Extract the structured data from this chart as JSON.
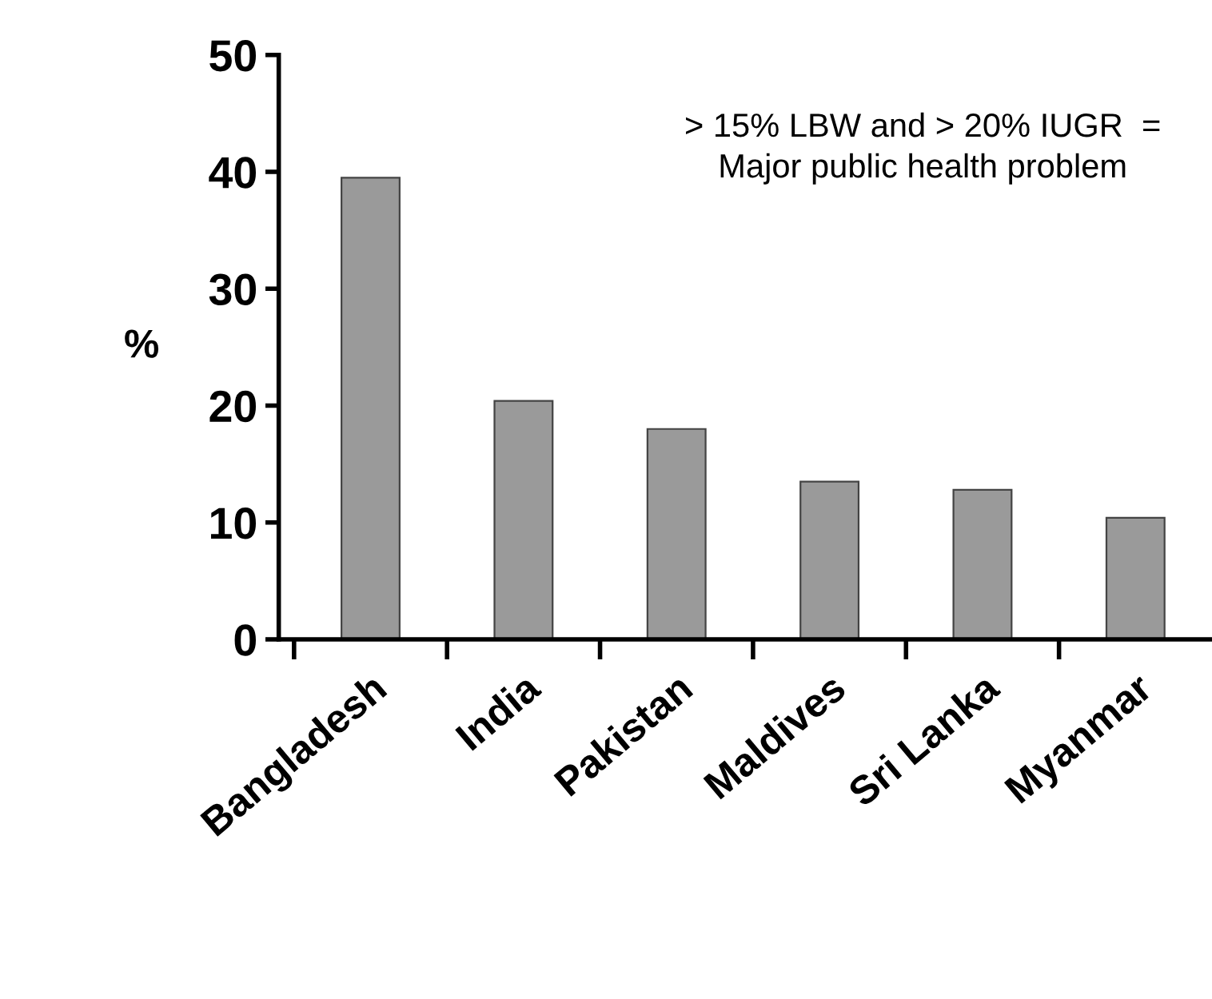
{
  "chart_data": {
    "type": "bar",
    "categories": [
      "Bangladesh",
      "India",
      "Pakistan",
      "Maldives",
      "Sri Lanka",
      "Myanmar"
    ],
    "values": [
      39.5,
      20.4,
      18.0,
      13.5,
      12.8,
      10.4
    ],
    "color": "#9a9a9a",
    "ylabel": "%",
    "ylim": [
      0,
      50
    ],
    "yticks": [
      0,
      10,
      20,
      30,
      40,
      50
    ],
    "annotations": [
      "> 15% LBW and > 20% IUGR  =\nMajor public health problem"
    ],
    "grid": false
  }
}
